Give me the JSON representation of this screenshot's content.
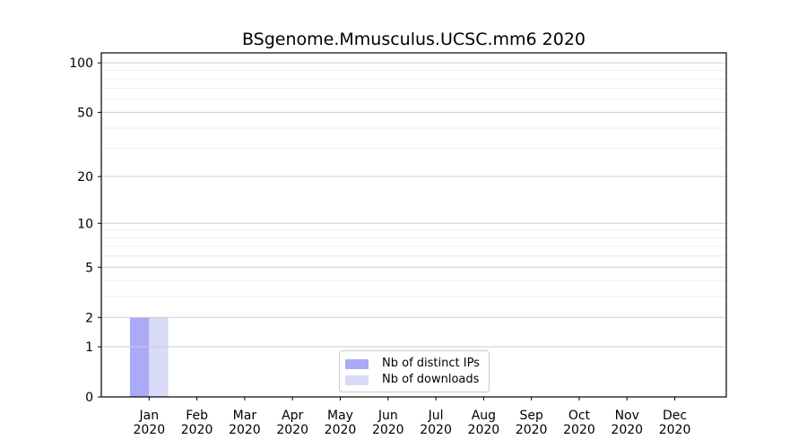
{
  "figure": {
    "title": "BSgenome.Mmusculus.UCSC.mm6 2020"
  },
  "legend": {
    "items": [
      {
        "label": "Nb of distinct IPs",
        "color_key": "distinct_ips"
      },
      {
        "label": "Nb of downloads",
        "color_key": "downloads"
      }
    ]
  },
  "colors": {
    "distinct_ips": "#aaaaf7",
    "downloads": "#d9d9f8",
    "axis": "#000000",
    "major_grid": "#cfcfcf",
    "minor_grid": "#ececec",
    "tick_text": "#000000",
    "legend_border": "#c9c9c9"
  },
  "chart_data": {
    "type": "bar",
    "title": "BSgenome.Mmusculus.UCSC.mm6 2020",
    "x_categories": [
      {
        "month": "Jan",
        "year": "2020"
      },
      {
        "month": "Feb",
        "year": "2020"
      },
      {
        "month": "Mar",
        "year": "2020"
      },
      {
        "month": "Apr",
        "year": "2020"
      },
      {
        "month": "May",
        "year": "2020"
      },
      {
        "month": "Jun",
        "year": "2020"
      },
      {
        "month": "Jul",
        "year": "2020"
      },
      {
        "month": "Aug",
        "year": "2020"
      },
      {
        "month": "Sep",
        "year": "2020"
      },
      {
        "month": "Oct",
        "year": "2020"
      },
      {
        "month": "Nov",
        "year": "2020"
      },
      {
        "month": "Dec",
        "year": "2020"
      }
    ],
    "series": [
      {
        "name": "Nb of distinct IPs",
        "color_key": "distinct_ips",
        "values": [
          2,
          0,
          0,
          0,
          0,
          0,
          0,
          0,
          0,
          0,
          0,
          0
        ]
      },
      {
        "name": "Nb of downloads",
        "color_key": "downloads",
        "values": [
          2,
          0,
          0,
          0,
          0,
          0,
          0,
          0,
          0,
          0,
          0,
          0
        ]
      }
    ],
    "xlabel": "",
    "ylabel": "",
    "yscale": "log1p",
    "ylim": [
      0,
      115
    ],
    "ytick_values": [
      0,
      1,
      2,
      5,
      10,
      20,
      50,
      100
    ],
    "ygrid_major": [
      1,
      2,
      5,
      10,
      20,
      50,
      100
    ],
    "ygrid_minor": [
      3,
      4,
      6,
      7,
      8,
      9,
      30,
      40,
      60,
      70,
      80,
      90
    ],
    "grid": "y",
    "legend_position": "lower center"
  }
}
